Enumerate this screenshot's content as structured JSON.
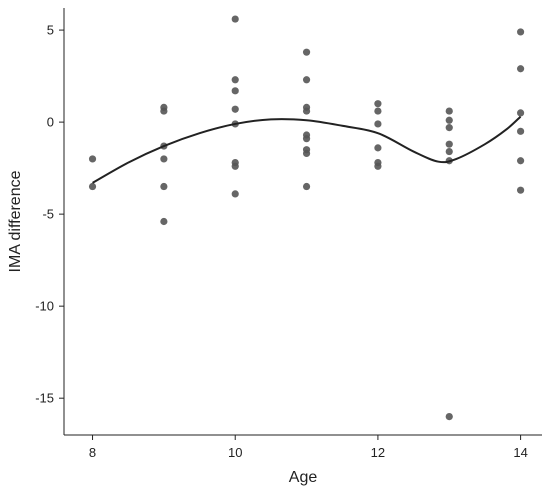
{
  "chart_data": {
    "type": "scatter",
    "title": "",
    "xlabel": "Age",
    "ylabel": "IMA difference",
    "xlim": [
      7.6,
      14.3
    ],
    "ylim": [
      -17,
      6.2
    ],
    "x_ticks": [
      8,
      10,
      12,
      14
    ],
    "x_tick_labels": [
      "8",
      "10",
      "12",
      "14"
    ],
    "y_ticks": [
      5,
      0,
      -5,
      -10,
      -15
    ],
    "y_tick_labels": [
      "5",
      "0",
      "-5",
      "-10",
      "-15"
    ],
    "grid": false,
    "legend": "none",
    "series": [
      {
        "type": "scatter",
        "points": [
          [
            8,
            -2.0
          ],
          [
            8,
            -3.5
          ],
          [
            9,
            0.8
          ],
          [
            9,
            0.6
          ],
          [
            9,
            -1.3
          ],
          [
            9,
            -2.0
          ],
          [
            9,
            -3.5
          ],
          [
            9,
            -5.4
          ],
          [
            10,
            5.6
          ],
          [
            10,
            2.3
          ],
          [
            10,
            1.7
          ],
          [
            10,
            0.7
          ],
          [
            10,
            -0.1
          ],
          [
            10,
            -2.2
          ],
          [
            10,
            -2.4
          ],
          [
            10,
            -3.9
          ],
          [
            11,
            3.8
          ],
          [
            11,
            2.3
          ],
          [
            11,
            0.8
          ],
          [
            11,
            0.6
          ],
          [
            11,
            -0.7
          ],
          [
            11,
            -0.9
          ],
          [
            11,
            -1.5
          ],
          [
            11,
            -1.7
          ],
          [
            11,
            -3.5
          ],
          [
            12,
            1.0
          ],
          [
            12,
            0.6
          ],
          [
            12,
            -0.1
          ],
          [
            12,
            -1.4
          ],
          [
            12,
            -2.2
          ],
          [
            12,
            -2.4
          ],
          [
            13,
            0.6
          ],
          [
            13,
            0.1
          ],
          [
            13,
            -0.3
          ],
          [
            13,
            -1.2
          ],
          [
            13,
            -1.6
          ],
          [
            13,
            -2.1
          ],
          [
            13,
            -16.0
          ],
          [
            14,
            4.9
          ],
          [
            14,
            2.9
          ],
          [
            14,
            0.5
          ],
          [
            14,
            -0.5
          ],
          [
            14,
            -2.1
          ],
          [
            14,
            -3.7
          ]
        ]
      },
      {
        "type": "line",
        "smooth": true,
        "points": [
          [
            8,
            -3.3
          ],
          [
            8.5,
            -2.2
          ],
          [
            9,
            -1.3
          ],
          [
            9.5,
            -0.6
          ],
          [
            10,
            -0.1
          ],
          [
            10.5,
            0.15
          ],
          [
            11,
            0.1
          ],
          [
            11.5,
            -0.2
          ],
          [
            12,
            -0.6
          ],
          [
            12.5,
            -1.6
          ],
          [
            12.85,
            -2.15
          ],
          [
            13.1,
            -2.0
          ],
          [
            13.5,
            -1.2
          ],
          [
            13.8,
            -0.4
          ],
          [
            14,
            0.3
          ]
        ]
      }
    ],
    "colors": {
      "point": "#555555",
      "line": "#222222",
      "axis": "#222222"
    }
  }
}
